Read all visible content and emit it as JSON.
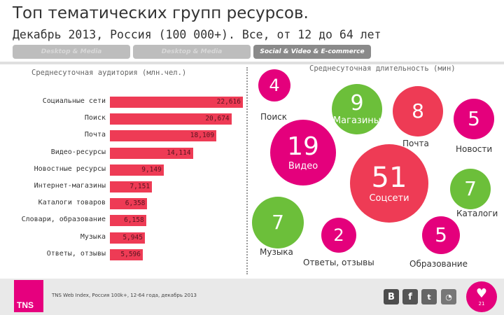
{
  "header": {
    "title": "Топ тематических групп ресурсов.",
    "subtitle": "Декабрь 2013, Россия (100 000+). Все, от 12 до 64 лет"
  },
  "tabs": [
    {
      "label": "Desktop & Media",
      "active": false
    },
    {
      "label": "Desktop & Media",
      "active": false
    },
    {
      "label": "Social & Video & E-commerce",
      "active": true
    }
  ],
  "colors": {
    "bar": "#ee3b55",
    "bubble_green": "#6cbf3a",
    "bubble_red": "#ee3b55",
    "bubble_pink": "#e4007c",
    "tns_brand": "#e6007e"
  },
  "chart_data": [
    {
      "type": "bar",
      "title": "Среднесуточная аудитория (млн.чел.)",
      "categories": [
        "Социальные сети",
        "Поиск",
        "Почта",
        "Видео-ресурсы",
        "Новостные ресурсы",
        "Интернет-магазины",
        "Каталоги товаров",
        "Словари, образование",
        "Музыка",
        "Ответы, отзывы"
      ],
      "values": [
        22.616,
        20.674,
        18.109,
        14.114,
        9.149,
        7.151,
        6.358,
        6.158,
        5.945,
        5.596
      ],
      "value_labels": [
        "22,616",
        "20,674",
        "18,109",
        "14,114",
        "9,149",
        "7,151",
        "6,358",
        "6,158",
        "5,945",
        "5,596"
      ],
      "orientation": "horizontal",
      "xlim": [
        0,
        25
      ]
    },
    {
      "type": "scatter",
      "subtype": "bubble",
      "title": "Среднесуточная длительность (мин)",
      "points": [
        {
          "value": 4,
          "label": "Поиск",
          "label_position": "below",
          "color": "pink"
        },
        {
          "value": 9,
          "label": "Магазины",
          "label_position": "inside",
          "color": "green"
        },
        {
          "value": 8,
          "label": "Почта",
          "label_position": "below",
          "color": "red"
        },
        {
          "value": 5,
          "label": "Новости",
          "label_position": "below",
          "color": "pink"
        },
        {
          "value": 19,
          "label": "Видео",
          "label_position": "inside",
          "color": "pink"
        },
        {
          "value": 51,
          "label": "Соцсети",
          "label_position": "inside",
          "color": "red"
        },
        {
          "value": 7,
          "label": "Каталоги",
          "label_position": "below",
          "color": "green"
        },
        {
          "value": 7,
          "label": "Музыка",
          "label_position": "below",
          "color": "green"
        },
        {
          "value": 2,
          "label": "Ответы, отзывы",
          "label_position": "below",
          "color": "pink"
        },
        {
          "value": 5,
          "label": "Образование",
          "label_position": "below",
          "color": "pink"
        }
      ]
    }
  ],
  "footer": {
    "logo_text": "TNS",
    "source": "TNS Web Index, Россия 100k+, 12-64 года, декабрь 2013",
    "social_icons": [
      "vk-icon",
      "facebook-icon",
      "twitter-icon",
      "rss-icon"
    ],
    "page_number": "21"
  }
}
